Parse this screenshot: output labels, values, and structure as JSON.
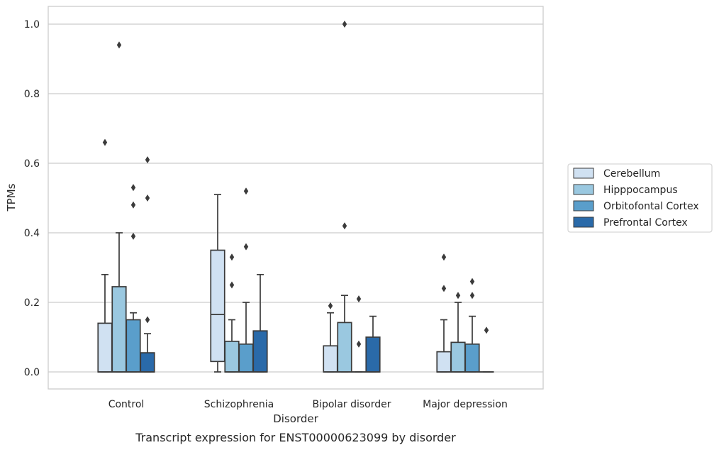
{
  "chart_data": {
    "type": "box",
    "caption": "Transcript expression for ENST00000623099 by disorder",
    "xlabel": "Disorder",
    "ylabel": "TPMs",
    "ylim": [
      -0.048,
      1.05
    ],
    "yticks": [
      0.0,
      0.2,
      0.4,
      0.6,
      0.8,
      1.0
    ],
    "ytick_labels": [
      "0.0",
      "0.2",
      "0.4",
      "0.6",
      "0.8",
      "1.0"
    ],
    "grid": "horizontal",
    "legend_position": "right",
    "categories": [
      "Control",
      "Schizophrenia",
      "Bipolar disorder",
      "Major depression"
    ],
    "series": [
      {
        "name": "Cerebellum",
        "color": "#d0e1f2",
        "boxes": [
          {
            "min": 0,
            "q1": 0,
            "median": 0,
            "q3": 0.14,
            "max": 0.28,
            "outliers": [
              0.66
            ]
          },
          {
            "min": 0,
            "q1": 0.03,
            "median": 0.165,
            "q3": 0.35,
            "max": 0.51,
            "outliers": []
          },
          {
            "min": 0,
            "q1": 0,
            "median": 0,
            "q3": 0.075,
            "max": 0.17,
            "outliers": [
              0.19
            ]
          },
          {
            "min": 0,
            "q1": 0,
            "median": 0,
            "q3": 0.058,
            "max": 0.15,
            "outliers": [
              0.24,
              0.33
            ]
          }
        ]
      },
      {
        "name": "Hipppocampus",
        "color": "#9ac8e0",
        "boxes": [
          {
            "min": 0,
            "q1": 0,
            "median": 0,
            "q3": 0.245,
            "max": 0.4,
            "outliers": [
              0.94
            ]
          },
          {
            "min": 0,
            "q1": 0,
            "median": 0,
            "q3": 0.088,
            "max": 0.15,
            "outliers": [
              0.25,
              0.33
            ]
          },
          {
            "min": 0,
            "q1": 0,
            "median": 0,
            "q3": 0.142,
            "max": 0.22,
            "outliers": [
              0.42,
              1.0
            ]
          },
          {
            "min": 0,
            "q1": 0,
            "median": 0,
            "q3": 0.085,
            "max": 0.2,
            "outliers": [
              0.22
            ]
          }
        ]
      },
      {
        "name": "Orbitofontal Cortex",
        "color": "#5a9ecb",
        "boxes": [
          {
            "min": 0,
            "q1": 0,
            "median": 0,
            "q3": 0.15,
            "max": 0.17,
            "outliers": [
              0.39,
              0.48,
              0.53
            ]
          },
          {
            "min": 0,
            "q1": 0,
            "median": 0,
            "q3": 0.08,
            "max": 0.2,
            "outliers": [
              0.36,
              0.52
            ]
          },
          {
            "min": 0,
            "q1": 0,
            "median": 0,
            "q3": 0,
            "max": 0,
            "outliers": [
              0.08,
              0.21
            ]
          },
          {
            "min": 0,
            "q1": 0,
            "median": 0,
            "q3": 0.08,
            "max": 0.16,
            "outliers": [
              0.22,
              0.26
            ]
          }
        ]
      },
      {
        "name": "Prefrontal Cortex",
        "color": "#2a6aa9",
        "boxes": [
          {
            "min": 0,
            "q1": 0,
            "median": 0,
            "q3": 0.055,
            "max": 0.11,
            "outliers": [
              0.15,
              0.5,
              0.61
            ]
          },
          {
            "min": 0,
            "q1": 0,
            "median": 0,
            "q3": 0.118,
            "max": 0.28,
            "outliers": []
          },
          {
            "min": 0,
            "q1": 0,
            "median": 0,
            "q3": 0.1,
            "max": 0.16,
            "outliers": []
          },
          {
            "min": 0,
            "q1": 0,
            "median": 0,
            "q3": 0,
            "max": 0,
            "outliers": [
              0.12
            ]
          }
        ]
      }
    ]
  }
}
